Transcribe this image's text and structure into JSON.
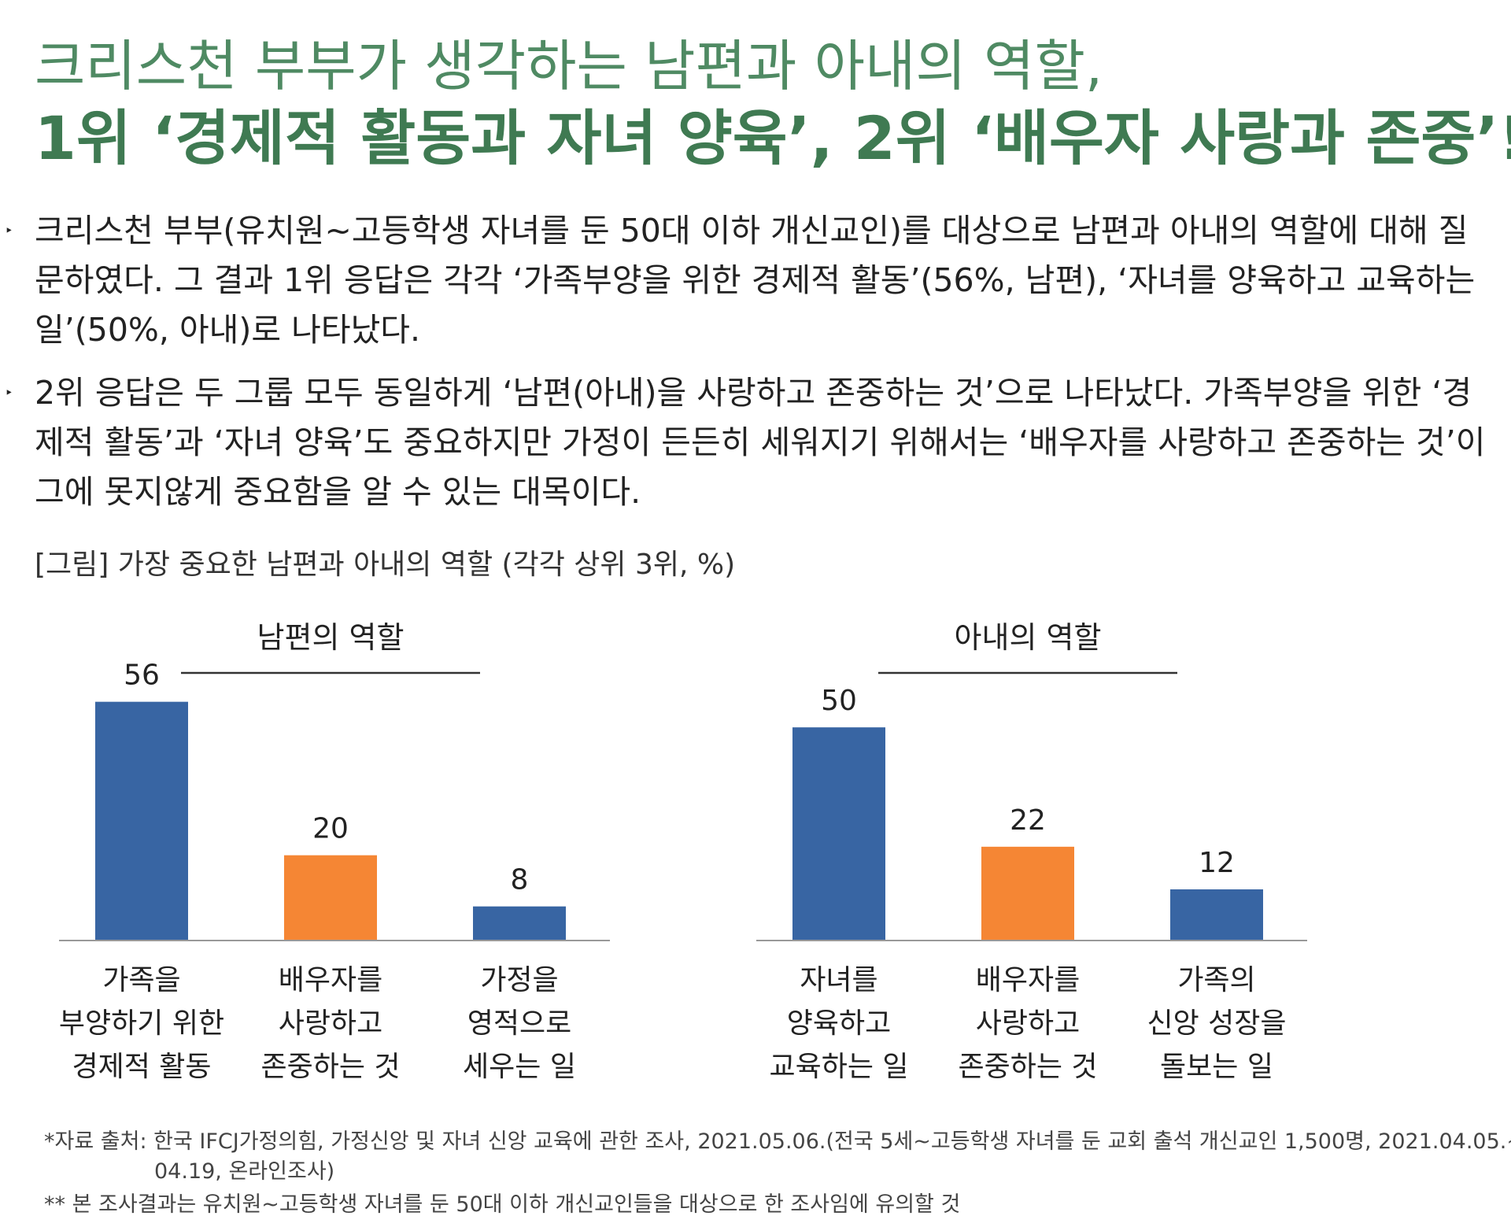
{
  "header": {
    "title_line1": "크리스천 부부가 생각하는 남편과 아내의 역할,",
    "title_line2": "1위 ‘경제적 활동과 자녀 양육’, 2위 ‘배우자 사랑과 존중’!"
  },
  "bullets": [
    {
      "marker": "‣",
      "text": "크리스천 부부(유치원~고등학생 자녀를 둔 50대 이하 개신교인)를 대상으로 남편과 아내의 역할에 대해 질문하였다. 그 결과 1위 응답은 각각 ‘가족부양을 위한 경제적 활동’(56%, 남편), ‘자녀를 양육하고 교육하는 일’(50%, 아내)로 나타났다."
    },
    {
      "marker": "‣",
      "text": "2위 응답은 두 그룹 모두 동일하게 ‘남편(아내)을 사랑하고 존중하는 것’으로 나타났다. 가족부양을 위한 ‘경제적 활동’과 ‘자녀 양육’도 중요하지만 가정이 든든히 세워지기 위해서는 ‘배우자를 사랑하고 존중하는 것’이 그에 못지않게 중요함을 알 수 있는 대목이다."
    }
  ],
  "figure_caption": "[그림] 가장 중요한 남편과 아내의 역할 (각각 상위 3위, %)",
  "colors": {
    "blue": "#3865a3",
    "orange": "#f58634",
    "axis": "#999999"
  },
  "chart_data": [
    {
      "type": "bar",
      "title": "남편의 역할",
      "categories": [
        [
          "가족을",
          "부양하기 위한",
          "경제적 활동"
        ],
        [
          "배우자를",
          "사랑하고",
          "존중하는 것"
        ],
        [
          "가정을",
          "영적으로",
          "세우는 일"
        ]
      ],
      "values": [
        56,
        20,
        8
      ],
      "bar_colors": [
        "#3865a3",
        "#f58634",
        "#3865a3"
      ],
      "ylim": [
        0,
        60
      ],
      "grid": false,
      "legend": "none"
    },
    {
      "type": "bar",
      "title": "아내의 역할",
      "categories": [
        [
          "자녀를",
          "양육하고",
          "교육하는 일"
        ],
        [
          "배우자를",
          "사랑하고",
          "존중하는 것"
        ],
        [
          "가족의",
          "신앙 성장을",
          "돌보는 일"
        ]
      ],
      "values": [
        50,
        22,
        12
      ],
      "bar_colors": [
        "#3865a3",
        "#f58634",
        "#3865a3"
      ],
      "ylim": [
        0,
        60
      ],
      "grid": false,
      "legend": "none"
    }
  ],
  "footnotes": {
    "line1": "*자료 출처: 한국 IFCJ가정의힘, 가정신앙 및 자녀 신앙 교육에 관한 조사, 2021.05.06.(전국 5세~고등학생 자녀를 둔 교회 출석 개신교인 1,500명, 2021.04.05.~",
    "line1_cont": "04.19, 온라인조사)",
    "line2": "** 본 조사결과는 유치원~고등학생 자녀를 둔 50대 이하 개신교인들을 대상으로 한 조사임에 유의할 것"
  }
}
